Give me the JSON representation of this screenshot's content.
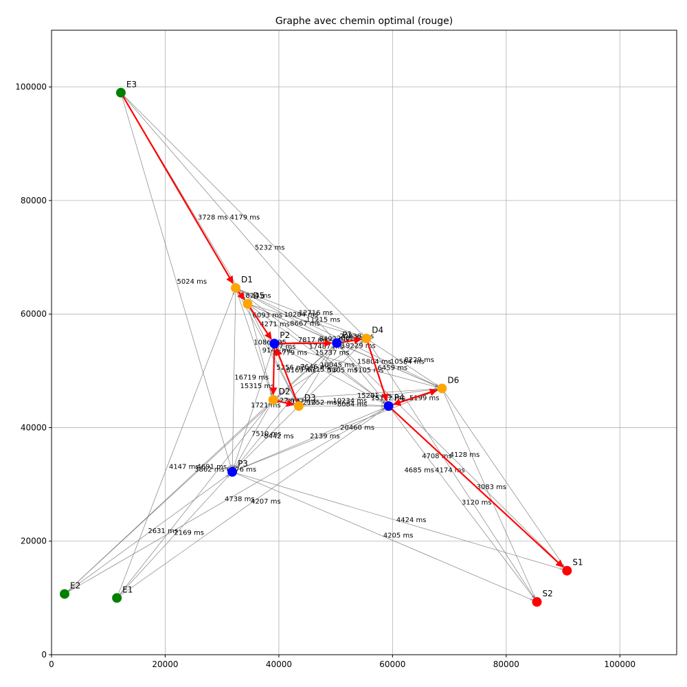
{
  "chart_data": {
    "type": "scatter",
    "title": "Graphe avec chemin optimal (rouge)",
    "xlabel": "",
    "ylabel": "",
    "xlim": [
      0,
      110000
    ],
    "ylim": [
      0,
      110000
    ],
    "grid": true,
    "x_ticks": [
      0,
      20000,
      40000,
      60000,
      80000,
      100000
    ],
    "y_ticks": [
      0,
      20000,
      40000,
      60000,
      80000,
      100000
    ],
    "x_tick_labels": [
      "0",
      "20000",
      "40000",
      "60000",
      "80000",
      "100000"
    ],
    "y_tick_labels": [
      "0",
      "20000",
      "40000",
      "60000",
      "80000",
      "100000"
    ],
    "node_colors": {
      "entry": "#008000",
      "exit": "#ff0000",
      "depot": "#ffa500",
      "point": "#0000ff"
    },
    "edge_color": "#808080",
    "path_color": "#ff0000",
    "nodes": [
      {
        "id": "E1",
        "x": 11500,
        "y": 10000,
        "kind": "entry"
      },
      {
        "id": "E2",
        "x": 2300,
        "y": 10700,
        "kind": "entry"
      },
      {
        "id": "E3",
        "x": 12200,
        "y": 99000,
        "kind": "entry"
      },
      {
        "id": "S1",
        "x": 90700,
        "y": 14800,
        "kind": "exit"
      },
      {
        "id": "S2",
        "x": 85400,
        "y": 9300,
        "kind": "exit"
      },
      {
        "id": "D1",
        "x": 32400,
        "y": 64600,
        "kind": "depot"
      },
      {
        "id": "D5",
        "x": 34500,
        "y": 61800,
        "kind": "depot"
      },
      {
        "id": "D2",
        "x": 39000,
        "y": 44900,
        "kind": "depot"
      },
      {
        "id": "D3",
        "x": 43500,
        "y": 43800,
        "kind": "depot"
      },
      {
        "id": "D4",
        "x": 55400,
        "y": 55700,
        "kind": "depot"
      },
      {
        "id": "D6",
        "x": 68700,
        "y": 46900,
        "kind": "depot"
      },
      {
        "id": "P2",
        "x": 39200,
        "y": 54800,
        "kind": "point"
      },
      {
        "id": "P3",
        "x": 31800,
        "y": 32200,
        "kind": "point"
      },
      {
        "id": "P1",
        "x": 50200,
        "y": 54900,
        "kind": "point"
      },
      {
        "id": "P4",
        "x": 59300,
        "y": 43800,
        "kind": "point"
      }
    ],
    "edges": [
      [
        "E3",
        "D1"
      ],
      [
        "E3",
        "D5"
      ],
      [
        "E3",
        "P3"
      ],
      [
        "E3",
        "P1"
      ],
      [
        "E3",
        "D4"
      ],
      [
        "E1",
        "P3"
      ],
      [
        "E1",
        "D2"
      ],
      [
        "E1",
        "P4"
      ],
      [
        "E1",
        "D1"
      ],
      [
        "E2",
        "P3"
      ],
      [
        "E2",
        "D2"
      ],
      [
        "E2",
        "P4"
      ],
      [
        "E2",
        "P1"
      ],
      [
        "D1",
        "P2"
      ],
      [
        "D1",
        "D2"
      ],
      [
        "D1",
        "D3"
      ],
      [
        "D1",
        "P1"
      ],
      [
        "D1",
        "D4"
      ],
      [
        "D1",
        "P4"
      ],
      [
        "D1",
        "D6"
      ],
      [
        "D1",
        "P3"
      ],
      [
        "D5",
        "P2"
      ],
      [
        "D5",
        "D2"
      ],
      [
        "D5",
        "P1"
      ],
      [
        "D5",
        "D4"
      ],
      [
        "D5",
        "D6"
      ],
      [
        "D5",
        "P4"
      ],
      [
        "D5",
        "D3"
      ],
      [
        "P2",
        "P1"
      ],
      [
        "P2",
        "D3"
      ],
      [
        "P2",
        "D2"
      ],
      [
        "P2",
        "P4"
      ],
      [
        "P2",
        "D4"
      ],
      [
        "P2",
        "D6"
      ],
      [
        "P2",
        "P3"
      ],
      [
        "D2",
        "D3"
      ],
      [
        "D2",
        "P4"
      ],
      [
        "D2",
        "P1"
      ],
      [
        "D2",
        "D6"
      ],
      [
        "D2",
        "D4"
      ],
      [
        "D2",
        "P3"
      ],
      [
        "D3",
        "P4"
      ],
      [
        "D3",
        "P1"
      ],
      [
        "D3",
        "D4"
      ],
      [
        "D3",
        "D6"
      ],
      [
        "D3",
        "P3"
      ],
      [
        "P1",
        "D4"
      ],
      [
        "P1",
        "P4"
      ],
      [
        "P1",
        "D6"
      ],
      [
        "D4",
        "P4"
      ],
      [
        "D4",
        "D6"
      ],
      [
        "D6",
        "P4"
      ],
      [
        "D6",
        "S1"
      ],
      [
        "D6",
        "S2"
      ],
      [
        "P4",
        "S1"
      ],
      [
        "P4",
        "S2"
      ],
      [
        "P3",
        "S1"
      ],
      [
        "P3",
        "S2"
      ],
      [
        "P3",
        "P4"
      ],
      [
        "P3",
        "P1"
      ],
      [
        "P3",
        "D6"
      ],
      [
        "P1",
        "S1"
      ],
      [
        "D4",
        "S2"
      ]
    ],
    "optimal_path": [
      "E3",
      "D1",
      "D5",
      "P2",
      "D2",
      "D3",
      "P2",
      "P1",
      "D4",
      "P4",
      "D6",
      "P4",
      "S1"
    ],
    "edge_labels": [
      {
        "text": "3728 ms 4179 ms",
        "x": 31200,
        "y": 77000
      },
      {
        "text": "5232 ms",
        "x": 38400,
        "y": 71700
      },
      {
        "text": "5024 ms",
        "x": 24700,
        "y": 65700
      },
      {
        "text": "1824 ms",
        "x": 36000,
        "y": 63200
      },
      {
        "text": "6093 ms",
        "x": 38000,
        "y": 59800
      },
      {
        "text": "4271 ms",
        "x": 39300,
        "y": 58200
      },
      {
        "text": "10284 ms",
        "x": 43900,
        "y": 59900
      },
      {
        "text": "12716 ms",
        "x": 46500,
        "y": 60200
      },
      {
        "text": "8667 ms",
        "x": 44600,
        "y": 58300
      },
      {
        "text": "11215 ms",
        "x": 47800,
        "y": 59000
      },
      {
        "text": "1086 ms",
        "x": 38200,
        "y": 55000
      },
      {
        "text": "725",
        "x": 40200,
        "y": 55000
      },
      {
        "text": "7817 ms",
        "x": 46000,
        "y": 55400
      },
      {
        "text": "8492 ms",
        "x": 49700,
        "y": 55600
      },
      {
        "text": "20838 ms",
        "x": 53700,
        "y": 56100
      },
      {
        "text": "20824 ms",
        "x": 53200,
        "y": 55700
      },
      {
        "text": "9145 ms",
        "x": 39700,
        "y": 53600
      },
      {
        "text": "77 ms",
        "x": 41100,
        "y": 54300
      },
      {
        "text": "15779 ms",
        "x": 42000,
        "y": 53200
      },
      {
        "text": "17487 ms",
        "x": 48300,
        "y": 54300
      },
      {
        "text": "19229 ms",
        "x": 54000,
        "y": 54400
      },
      {
        "text": "15737 ms",
        "x": 49400,
        "y": 53200
      },
      {
        "text": "15804 ms",
        "x": 56800,
        "y": 51600
      },
      {
        "text": "10564 ms",
        "x": 62600,
        "y": 51600
      },
      {
        "text": "8229 ms",
        "x": 64700,
        "y": 51900
      },
      {
        "text": "5256 ms",
        "x": 42200,
        "y": 50600
      },
      {
        "text": "7646 ms",
        "x": 46400,
        "y": 50700
      },
      {
        "text": "10045 ms",
        "x": 50300,
        "y": 51000
      },
      {
        "text": "6459 ms",
        "x": 60000,
        "y": 50500
      },
      {
        "text": "8169 ms",
        "x": 43900,
        "y": 50100
      },
      {
        "text": "6715 ms",
        "x": 47600,
        "y": 50200
      },
      {
        "text": "5105 ms",
        "x": 51200,
        "y": 50100
      },
      {
        "text": "5105 ms",
        "x": 55800,
        "y": 50100
      },
      {
        "text": "16719 ms",
        "x": 35200,
        "y": 48800
      },
      {
        "text": "15315 ms",
        "x": 36200,
        "y": 47300
      },
      {
        "text": "15201 ms",
        "x": 56800,
        "y": 45600
      },
      {
        "text": "15122 ms",
        "x": 59200,
        "y": 45200
      },
      {
        "text": "5199 ms",
        "x": 65600,
        "y": 45200
      },
      {
        "text": "1721 ms",
        "x": 37700,
        "y": 43900
      },
      {
        "text": "2127 ms",
        "x": 41200,
        "y": 44800
      },
      {
        "text": "2177 ms",
        "x": 44000,
        "y": 44600
      },
      {
        "text": "10234 ms",
        "x": 52500,
        "y": 44700
      },
      {
        "text": "8084 ms",
        "x": 52900,
        "y": 44100
      },
      {
        "text": "21252 ms",
        "x": 47200,
        "y": 44400
      },
      {
        "text": "7510 ms",
        "x": 37800,
        "y": 38900
      },
      {
        "text": "8442 ms",
        "x": 40000,
        "y": 38500
      },
      {
        "text": "2139 ms",
        "x": 48100,
        "y": 38500
      },
      {
        "text": "20460 ms",
        "x": 53800,
        "y": 40000
      },
      {
        "text": "4708 ms",
        "x": 67800,
        "y": 35000
      },
      {
        "text": "4128 ms",
        "x": 72700,
        "y": 35200
      },
      {
        "text": "4685 ms",
        "x": 64700,
        "y": 32500
      },
      {
        "text": "4174 ms",
        "x": 70100,
        "y": 32500
      },
      {
        "text": "4147 ms",
        "x": 23300,
        "y": 33100
      },
      {
        "text": "4691 ms",
        "x": 28200,
        "y": 33100
      },
      {
        "text": "3862 ms",
        "x": 27800,
        "y": 32600
      },
      {
        "text": "6776 ms",
        "x": 33400,
        "y": 32600
      },
      {
        "text": "3083 ms",
        "x": 77400,
        "y": 29500
      },
      {
        "text": "3120 ms",
        "x": 74800,
        "y": 26800
      },
      {
        "text": "4738 ms",
        "x": 33100,
        "y": 27400
      },
      {
        "text": "4207 ms",
        "x": 37700,
        "y": 27000
      },
      {
        "text": "4424 ms",
        "x": 63300,
        "y": 23700
      },
      {
        "text": "4205 ms",
        "x": 61000,
        "y": 21000
      },
      {
        "text": "2631 ms",
        "x": 19600,
        "y": 21800
      },
      {
        "text": "2169 ms",
        "x": 24200,
        "y": 21500
      }
    ]
  }
}
